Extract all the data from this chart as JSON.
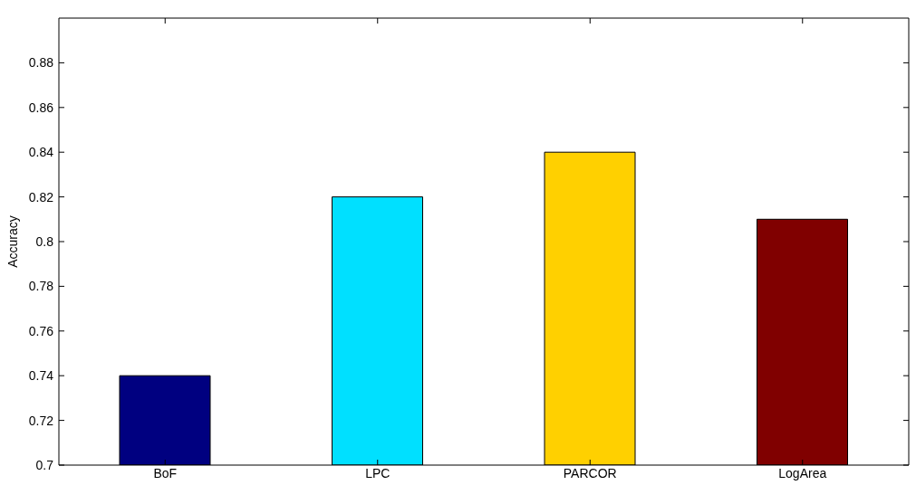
{
  "chart_data": {
    "type": "bar",
    "ylabel": "Accuracy",
    "categories": [
      "BoF",
      "LPC",
      "PARCOR",
      "LogArea"
    ],
    "values": [
      0.74,
      0.82,
      0.84,
      0.81
    ],
    "colors": [
      "#000080",
      "#00e0ff",
      "#ffd000",
      "#800000"
    ],
    "ylim": [
      0.7,
      0.9
    ],
    "yticks": [
      0.7,
      0.72,
      0.74,
      0.76,
      0.78,
      0.8,
      0.82,
      0.84,
      0.86,
      0.88
    ],
    "grid": false
  }
}
